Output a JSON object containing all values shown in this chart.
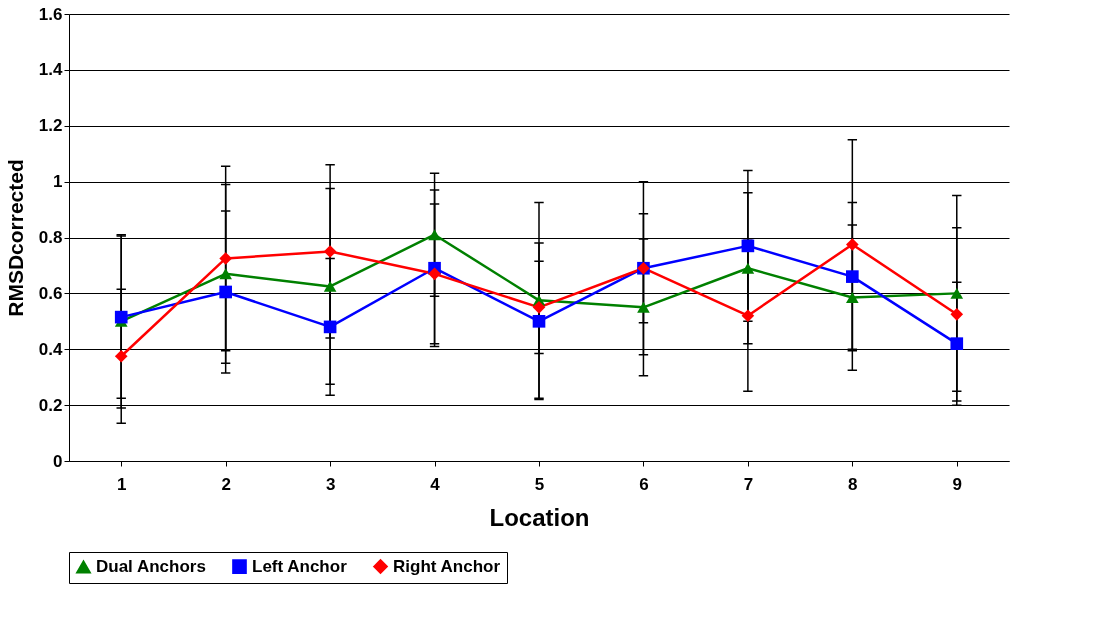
{
  "chart_data": {
    "type": "line",
    "xlabel": "Location",
    "ylabel": "RMSDcorrected",
    "categories": [
      "1",
      "2",
      "3",
      "4",
      "5",
      "6",
      "7",
      "8",
      "9"
    ],
    "series": [
      {
        "name": "Dual Anchors",
        "color": "#008000",
        "marker": "triangle",
        "values": [
          0.5,
          0.67,
          0.625,
          0.81,
          0.575,
          0.55,
          0.69,
          0.585,
          0.6
        ],
        "errors": [
          0.31,
          0.32,
          0.35,
          0.22,
          0.35,
          0.245,
          0.27,
          0.26,
          0.35
        ]
      },
      {
        "name": "Left Anchor",
        "color": "#0000ff",
        "marker": "square",
        "values": [
          0.515,
          0.605,
          0.48,
          0.69,
          0.5,
          0.69,
          0.77,
          0.66,
          0.42
        ],
        "errors": [
          0.29,
          0.29,
          0.245,
          0.28,
          0.28,
          0.31,
          0.27,
          0.265,
          0.22
        ]
      },
      {
        "name": "Right Anchor",
        "color": "#ff0000",
        "marker": "diamond",
        "values": [
          0.375,
          0.725,
          0.75,
          0.67,
          0.55,
          0.69,
          0.52,
          0.775,
          0.525
        ],
        "errors": [
          0.24,
          0.33,
          0.31,
          0.25,
          0.165,
          0.195,
          0.27,
          0.375,
          0.31
        ]
      }
    ],
    "ylim": [
      0,
      1.6
    ],
    "yticks": [
      0,
      0.2,
      0.4,
      0.6,
      0.8,
      1,
      1.2,
      1.4,
      1.6
    ],
    "grid": "y",
    "legend": "bottom",
    "line_style": "solid"
  }
}
